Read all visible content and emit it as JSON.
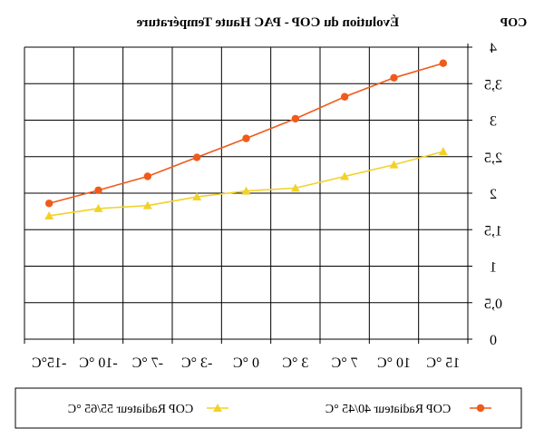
{
  "chart_data": {
    "type": "line",
    "title": "Évolution du COP - PAC Haute Température",
    "ylabel": "COP",
    "mirrored": true,
    "ylim": [
      0,
      4
    ],
    "y_ticks": [
      "0",
      "0,5",
      "1",
      "1,5",
      "2",
      "2,5",
      "3",
      "3,5",
      "4"
    ],
    "categories": [
      "15 °C",
      "10 °C",
      "7 °C",
      "3 °C",
      "0 °C",
      "-3 °C",
      "-7 °C",
      "-10 °C",
      "-15°C"
    ],
    "grid": true,
    "legend_position": "bottom",
    "series": [
      {
        "name": "COP Radiateur 40/45 °C",
        "color": "#f05a1a",
        "marker": "circle",
        "values": [
          3.78,
          3.58,
          3.32,
          3.02,
          2.75,
          2.49,
          2.23,
          2.04,
          1.86
        ]
      },
      {
        "name": "COP Radiateur 55/65 °C",
        "color": "#f2d22a",
        "marker": "triangle",
        "values": [
          2.57,
          2.39,
          2.23,
          2.07,
          2.03,
          1.95,
          1.83,
          1.79,
          1.69
        ]
      }
    ]
  }
}
